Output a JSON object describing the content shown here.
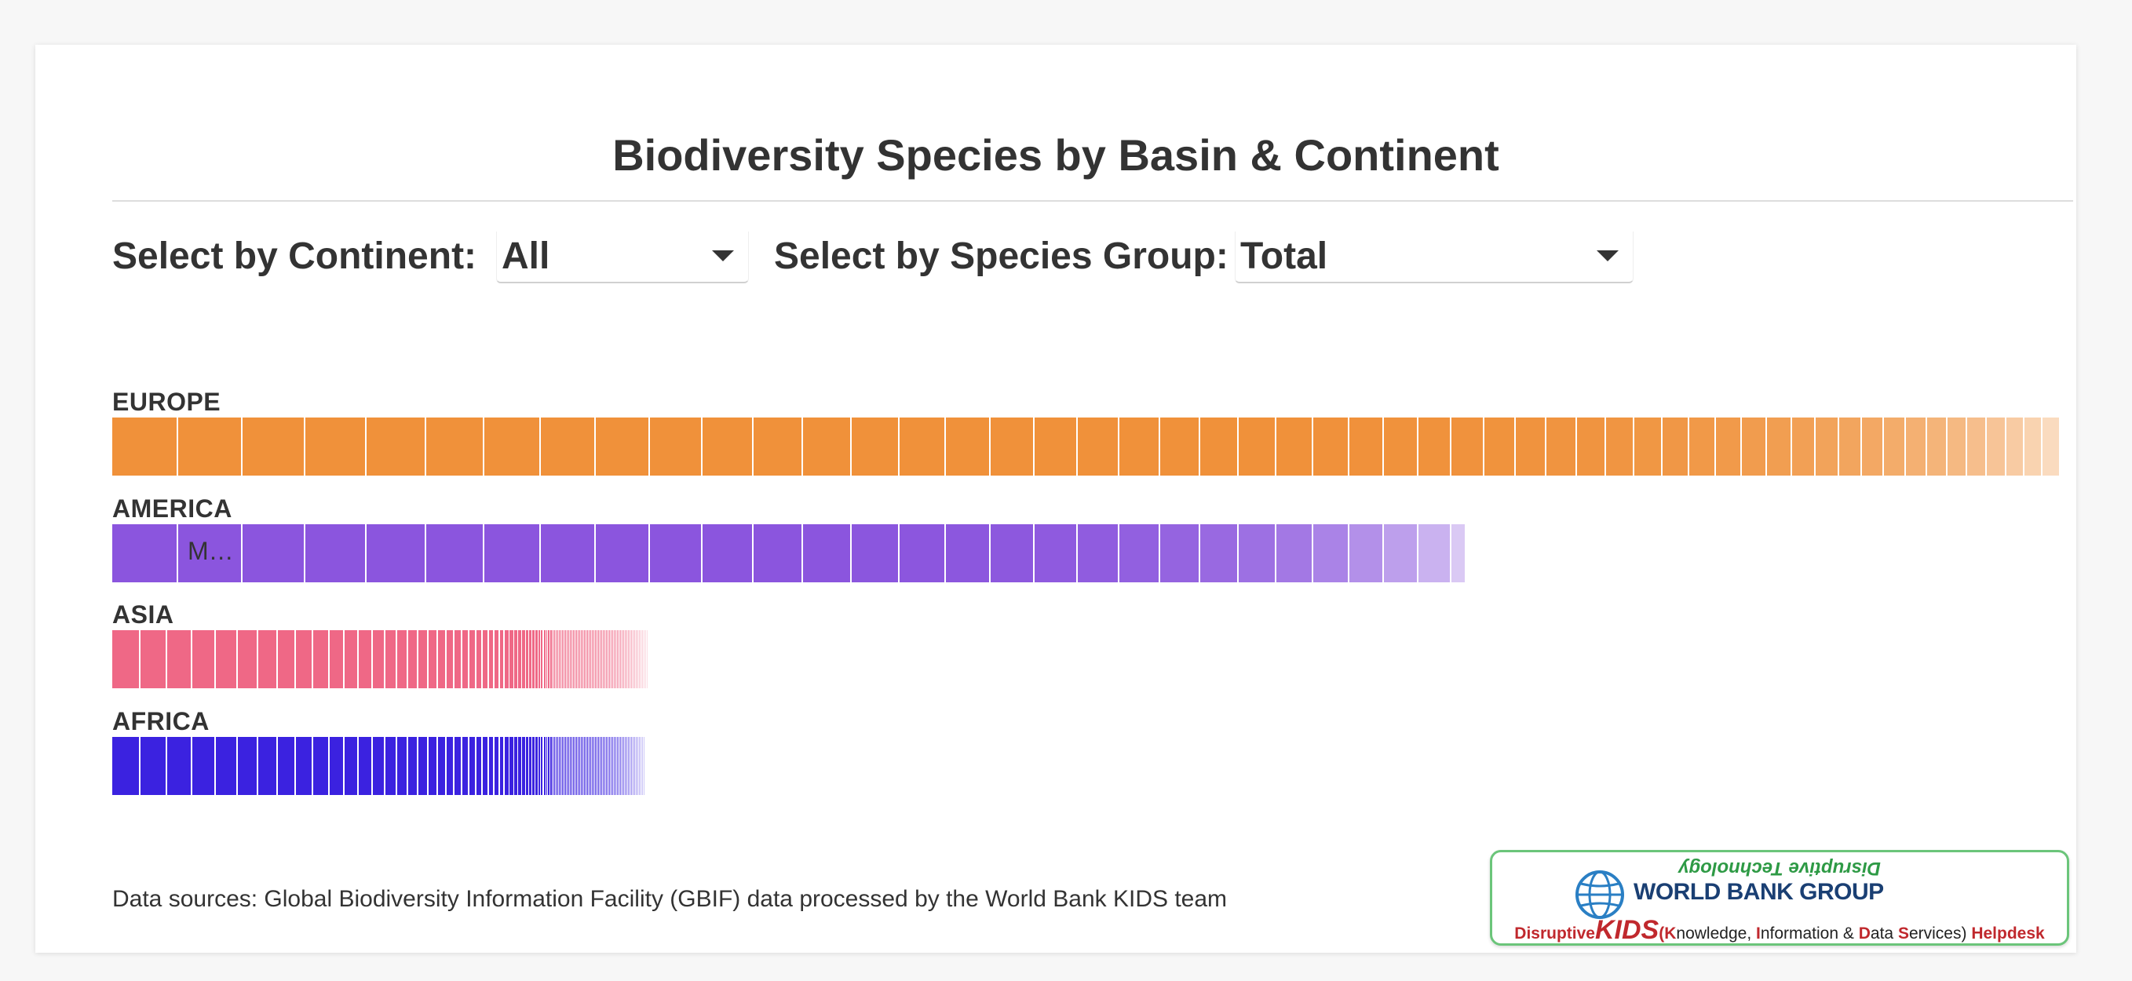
{
  "title": "Biodiversity Species by Basin & Continent",
  "controls": {
    "continent_label": "Select by Continent:",
    "continent_value": "All",
    "species_label": "Select by Species Group:",
    "species_value": "Total"
  },
  "colors": {
    "EUROPE": "#f0913a",
    "AMERICA": "#8b55de",
    "ASIA": "#ef6886",
    "AFRICA": "#3b22e0"
  },
  "chart_data": {
    "type": "bar",
    "orientation": "horizontal",
    "stacked": true,
    "categories": [
      "EUROPE",
      "AMERICA",
      "ASIA",
      "AFRICA"
    ],
    "values": [
      100,
      69.5,
      27.5,
      27.4
    ],
    "segment_labels": {
      "AMERICA": [
        "",
        "M…"
      ]
    },
    "title": "",
    "xlabel": "",
    "ylabel": "",
    "grid": false,
    "legend": "none"
  },
  "source_text": "Data sources: Global Biodiversity Information Facility (GBIF) data processed by the World Bank KIDS team",
  "logo": {
    "tagline": "Disruptive Technology",
    "org": "WORLD BANK GROUP",
    "line_disruptive": "Disruptive",
    "line_kids": "KIDS",
    "line_k": "(K",
    "line_nowledge": "nowledge, ",
    "line_i": "I",
    "line_nformation": "nformation & ",
    "line_d": "D",
    "line_ata": "ata ",
    "line_s": "S",
    "line_ervices": "ervices) ",
    "line_helpdesk": "Helpdesk"
  }
}
